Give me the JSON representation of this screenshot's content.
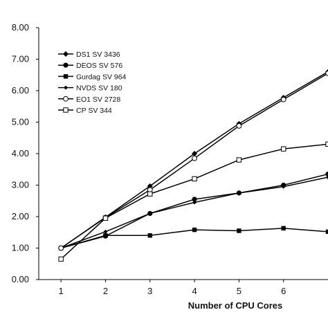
{
  "chart_data": {
    "type": "line",
    "title": "",
    "xlabel": "Number of CPU Cores",
    "ylabel": "",
    "x": [
      1,
      2,
      3,
      4,
      5,
      6,
      7
    ],
    "xlim": [
      0.5,
      7
    ],
    "ylim": [
      0,
      8
    ],
    "x_ticks": [
      "1",
      "2",
      "3",
      "4",
      "5",
      "6"
    ],
    "y_ticks": [
      "0.00",
      "1.00",
      "2.00",
      "3.00",
      "4.00",
      "5.00",
      "6.00",
      "7.00",
      "8.00"
    ],
    "grid": false,
    "legend_position": "top-left",
    "series": [
      {
        "name": "DS1 SV 3436",
        "marker": "diamond-filled",
        "values": [
          1.0,
          1.98,
          2.97,
          4.0,
          4.95,
          5.78,
          6.6
        ]
      },
      {
        "name": "DEOS SV 576",
        "marker": "circle-filled",
        "values": [
          1.0,
          1.38,
          2.1,
          2.55,
          2.75,
          3.0,
          3.35
        ]
      },
      {
        "name": "Gurdag SV 964",
        "marker": "square-filled",
        "values": [
          1.0,
          1.4,
          1.4,
          1.58,
          1.55,
          1.63,
          1.52
        ]
      },
      {
        "name": "NVDS SV 180",
        "marker": "small-diamond",
        "values": [
          1.0,
          1.52,
          2.1,
          2.45,
          2.75,
          2.95,
          3.25
        ]
      },
      {
        "name": "EO1 SV 2728",
        "marker": "circle-open",
        "values": [
          1.0,
          1.97,
          2.85,
          3.85,
          4.88,
          5.72,
          6.55
        ]
      },
      {
        "name": "CP SV 344",
        "marker": "square-open",
        "values": [
          0.65,
          1.95,
          2.72,
          3.2,
          3.8,
          4.15,
          4.3
        ]
      }
    ]
  }
}
